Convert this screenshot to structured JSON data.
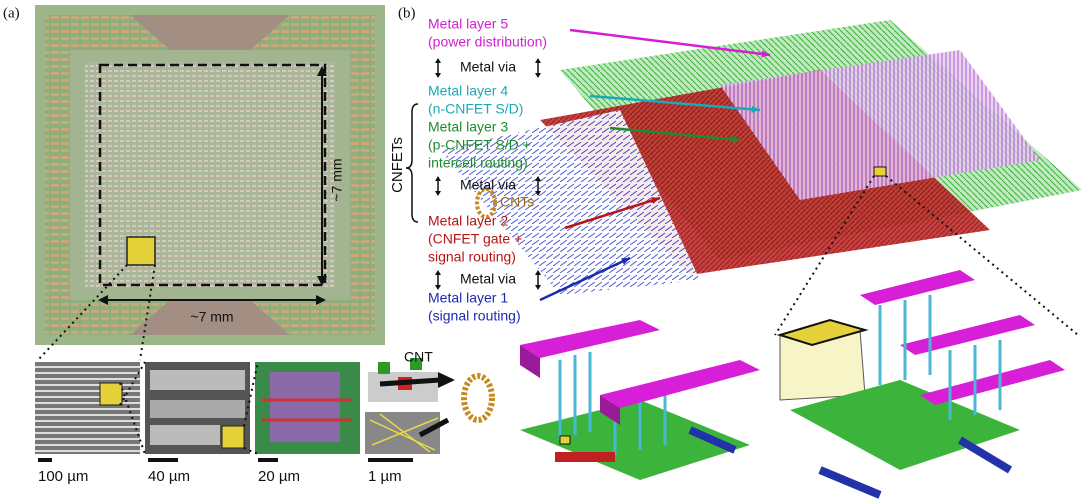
{
  "panel_a": {
    "label": "(a)",
    "width_label": "~7 mm",
    "height_label": "~7 mm",
    "scale_bars": [
      "100 µm",
      "40 µm",
      "20 µm",
      "1 µm"
    ],
    "cnt_label": "CNT"
  },
  "panel_b": {
    "label": "(b)",
    "group_label": "CNFETs",
    "cnts_label": "CNTs",
    "layers": [
      {
        "lines": [
          "Metal layer 5",
          "(power distribution)"
        ],
        "color": "#d21fd2"
      },
      {
        "lines": [
          "Metal layer 4",
          "(n-CNFET S/D)"
        ],
        "color": "#1aa9b8"
      },
      {
        "lines": [
          "Metal layer 3",
          "(p-CNFET S/D +",
          "intercell routing)"
        ],
        "color": "#1e8c2a"
      },
      {
        "lines": [
          "Metal layer 2",
          "(CNFET gate +",
          "signal routing)"
        ],
        "color": "#b81414"
      },
      {
        "lines": [
          "Metal layer 1",
          "(signal routing)"
        ],
        "color": "#1b2bb0"
      }
    ],
    "vias": [
      "Metal via",
      "Metal via",
      "Metal via"
    ]
  }
}
